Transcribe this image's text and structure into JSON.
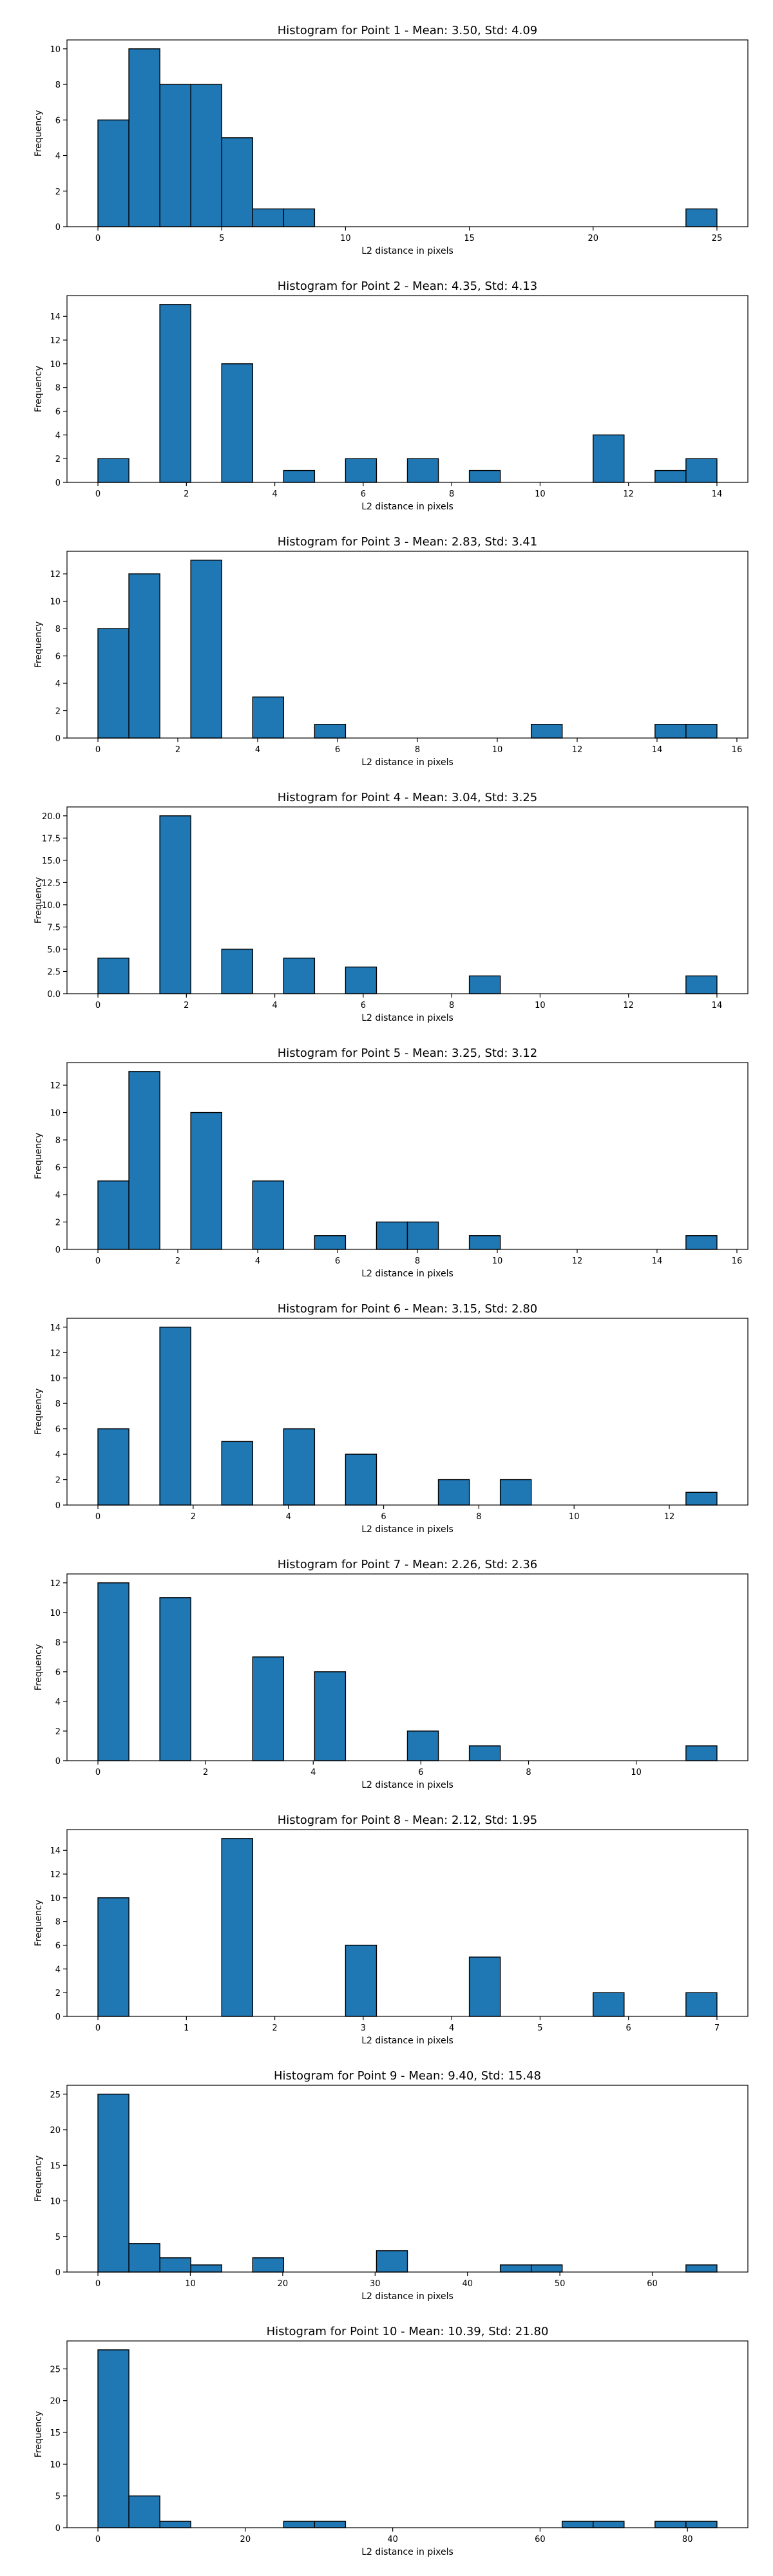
{
  "chart_data": [
    {
      "type": "bar",
      "title": "Histogram for Point 1 - Mean: 3.50, Std: 4.09",
      "xlabel": "L2 distance in pixels",
      "ylabel": "Frequency",
      "bin_width": 1.25,
      "x_start": 0,
      "values": [
        6,
        10,
        8,
        8,
        5,
        1,
        1,
        0,
        0,
        0,
        0,
        0,
        0,
        0,
        0,
        0,
        0,
        0,
        0,
        1
      ],
      "xlim": [
        -1.25,
        26.25
      ],
      "ylim": [
        0,
        10.5
      ],
      "xticks": [
        0,
        5,
        10,
        15,
        20,
        25
      ],
      "yticks": [
        0,
        2,
        4,
        6,
        8,
        10
      ]
    },
    {
      "type": "bar",
      "title": "Histogram for Point 2 - Mean: 4.35, Std: 4.13",
      "xlabel": "L2 distance in pixels",
      "ylabel": "Frequency",
      "bin_width": 0.7,
      "x_start": 0,
      "values": [
        2,
        0,
        15,
        0,
        10,
        0,
        1,
        0,
        2,
        0,
        2,
        0,
        1,
        0,
        0,
        0,
        4,
        0,
        1,
        2
      ],
      "xlim": [
        -0.7,
        14.7
      ],
      "ylim": [
        0,
        15.75
      ],
      "xticks": [
        0,
        2,
        4,
        6,
        8,
        10,
        12,
        14
      ],
      "yticks": [
        0,
        2,
        4,
        6,
        8,
        10,
        12,
        14
      ]
    },
    {
      "type": "bar",
      "title": "Histogram for Point 3 - Mean: 2.83, Std: 3.41",
      "xlabel": "L2 distance in pixels",
      "ylabel": "Frequency",
      "bin_width": 0.775,
      "x_start": 0,
      "values": [
        8,
        12,
        0,
        13,
        0,
        3,
        0,
        1,
        0,
        0,
        0,
        0,
        0,
        0,
        1,
        0,
        0,
        0,
        1,
        1
      ],
      "xlim": [
        -0.775,
        16.275
      ],
      "ylim": [
        0,
        13.65
      ],
      "xticks": [
        0,
        2,
        4,
        6,
        8,
        10,
        12,
        14,
        16
      ],
      "yticks": [
        0,
        2,
        4,
        6,
        8,
        10,
        12
      ]
    },
    {
      "type": "bar",
      "title": "Histogram for Point 4 - Mean: 3.04, Std: 3.25",
      "xlabel": "L2 distance in pixels",
      "ylabel": "Frequency",
      "bin_width": 0.7,
      "x_start": 0,
      "values": [
        4,
        0,
        20,
        0,
        5,
        0,
        4,
        0,
        3,
        0,
        0,
        0,
        2,
        0,
        0,
        0,
        0,
        0,
        0,
        2
      ],
      "xlim": [
        -0.7,
        14.7
      ],
      "ylim": [
        0,
        21
      ],
      "xticks": [
        0,
        2,
        4,
        6,
        8,
        10,
        12,
        14
      ],
      "yticks": [
        0,
        2.5,
        5,
        7.5,
        10,
        12.5,
        15,
        17.5,
        20
      ],
      "ytick_labels": [
        "0.0",
        "2.5",
        "5.0",
        "7.5",
        "10.0",
        "12.5",
        "15.0",
        "17.5",
        "20.0"
      ]
    },
    {
      "type": "bar",
      "title": "Histogram for Point 5 - Mean: 3.25, Std: 3.12",
      "xlabel": "L2 distance in pixels",
      "ylabel": "Frequency",
      "bin_width": 0.775,
      "x_start": 0,
      "values": [
        5,
        13,
        0,
        10,
        0,
        5,
        0,
        1,
        0,
        2,
        2,
        0,
        1,
        0,
        0,
        0,
        0,
        0,
        0,
        1
      ],
      "xlim": [
        -0.775,
        16.275
      ],
      "ylim": [
        0,
        13.65
      ],
      "xticks": [
        0,
        2,
        4,
        6,
        8,
        10,
        12,
        14,
        16
      ],
      "yticks": [
        0,
        2,
        4,
        6,
        8,
        10,
        12
      ]
    },
    {
      "type": "bar",
      "title": "Histogram for Point 6 - Mean: 3.15, Std: 2.80",
      "xlabel": "L2 distance in pixels",
      "ylabel": "Frequency",
      "bin_width": 0.65,
      "x_start": 0,
      "values": [
        6,
        0,
        14,
        0,
        5,
        0,
        6,
        0,
        4,
        0,
        0,
        2,
        0,
        2,
        0,
        0,
        0,
        0,
        0,
        1
      ],
      "xlim": [
        -0.65,
        13.65
      ],
      "ylim": [
        0,
        14.7
      ],
      "xticks": [
        0,
        2,
        4,
        6,
        8,
        10,
        12
      ],
      "yticks": [
        0,
        2,
        4,
        6,
        8,
        10,
        12,
        14
      ]
    },
    {
      "type": "bar",
      "title": "Histogram for Point 7 - Mean: 2.26, Std: 2.36",
      "xlabel": "L2 distance in pixels",
      "ylabel": "Frequency",
      "bin_width": 0.575,
      "x_start": 0,
      "values": [
        12,
        0,
        11,
        0,
        0,
        7,
        0,
        6,
        0,
        0,
        2,
        0,
        1,
        0,
        0,
        0,
        0,
        0,
        0,
        1
      ],
      "xlim": [
        -0.575,
        12.075
      ],
      "ylim": [
        0,
        12.6
      ],
      "xticks": [
        0,
        2,
        4,
        6,
        8,
        10
      ],
      "yticks": [
        0,
        2,
        4,
        6,
        8,
        10,
        12
      ]
    },
    {
      "type": "bar",
      "title": "Histogram for Point 8 - Mean: 2.12, Std: 1.95",
      "xlabel": "L2 distance in pixels",
      "ylabel": "Frequency",
      "bin_width": 0.35,
      "x_start": 0,
      "values": [
        10,
        0,
        0,
        0,
        15,
        0,
        0,
        0,
        6,
        0,
        0,
        0,
        5,
        0,
        0,
        0,
        2,
        0,
        0,
        2
      ],
      "xlim": [
        -0.35,
        7.35
      ],
      "ylim": [
        0,
        15.75
      ],
      "xticks": [
        0,
        1,
        2,
        3,
        4,
        5,
        6,
        7
      ],
      "yticks": [
        0,
        2,
        4,
        6,
        8,
        10,
        12,
        14
      ]
    },
    {
      "type": "bar",
      "title": "Histogram for Point 9 - Mean: 9.40, Std: 15.48",
      "xlabel": "L2 distance in pixels",
      "ylabel": "Frequency",
      "bin_width": 3.35,
      "x_start": 0,
      "values": [
        25,
        4,
        2,
        1,
        0,
        2,
        0,
        0,
        0,
        3,
        0,
        0,
        0,
        1,
        1,
        0,
        0,
        0,
        0,
        1
      ],
      "xlim": [
        -3.35,
        70.35
      ],
      "ylim": [
        0,
        26.25
      ],
      "xticks": [
        0,
        10,
        20,
        30,
        40,
        50,
        60
      ],
      "yticks": [
        0,
        5,
        10,
        15,
        20,
        25
      ]
    },
    {
      "type": "bar",
      "title": "Histogram for Point 10 - Mean: 10.39, Std: 21.80",
      "xlabel": "L2 distance in pixels",
      "ylabel": "Frequency",
      "bin_width": 4.2,
      "x_start": 0,
      "values": [
        28,
        5,
        1,
        0,
        0,
        0,
        1,
        1,
        0,
        0,
        0,
        0,
        0,
        0,
        0,
        1,
        1,
        0,
        1,
        1
      ],
      "xlim": [
        -4.2,
        88.2
      ],
      "ylim": [
        0,
        29.4
      ],
      "xticks": [
        0,
        20,
        40,
        60,
        80
      ],
      "yticks": [
        0,
        5,
        10,
        15,
        20,
        25
      ]
    }
  ]
}
